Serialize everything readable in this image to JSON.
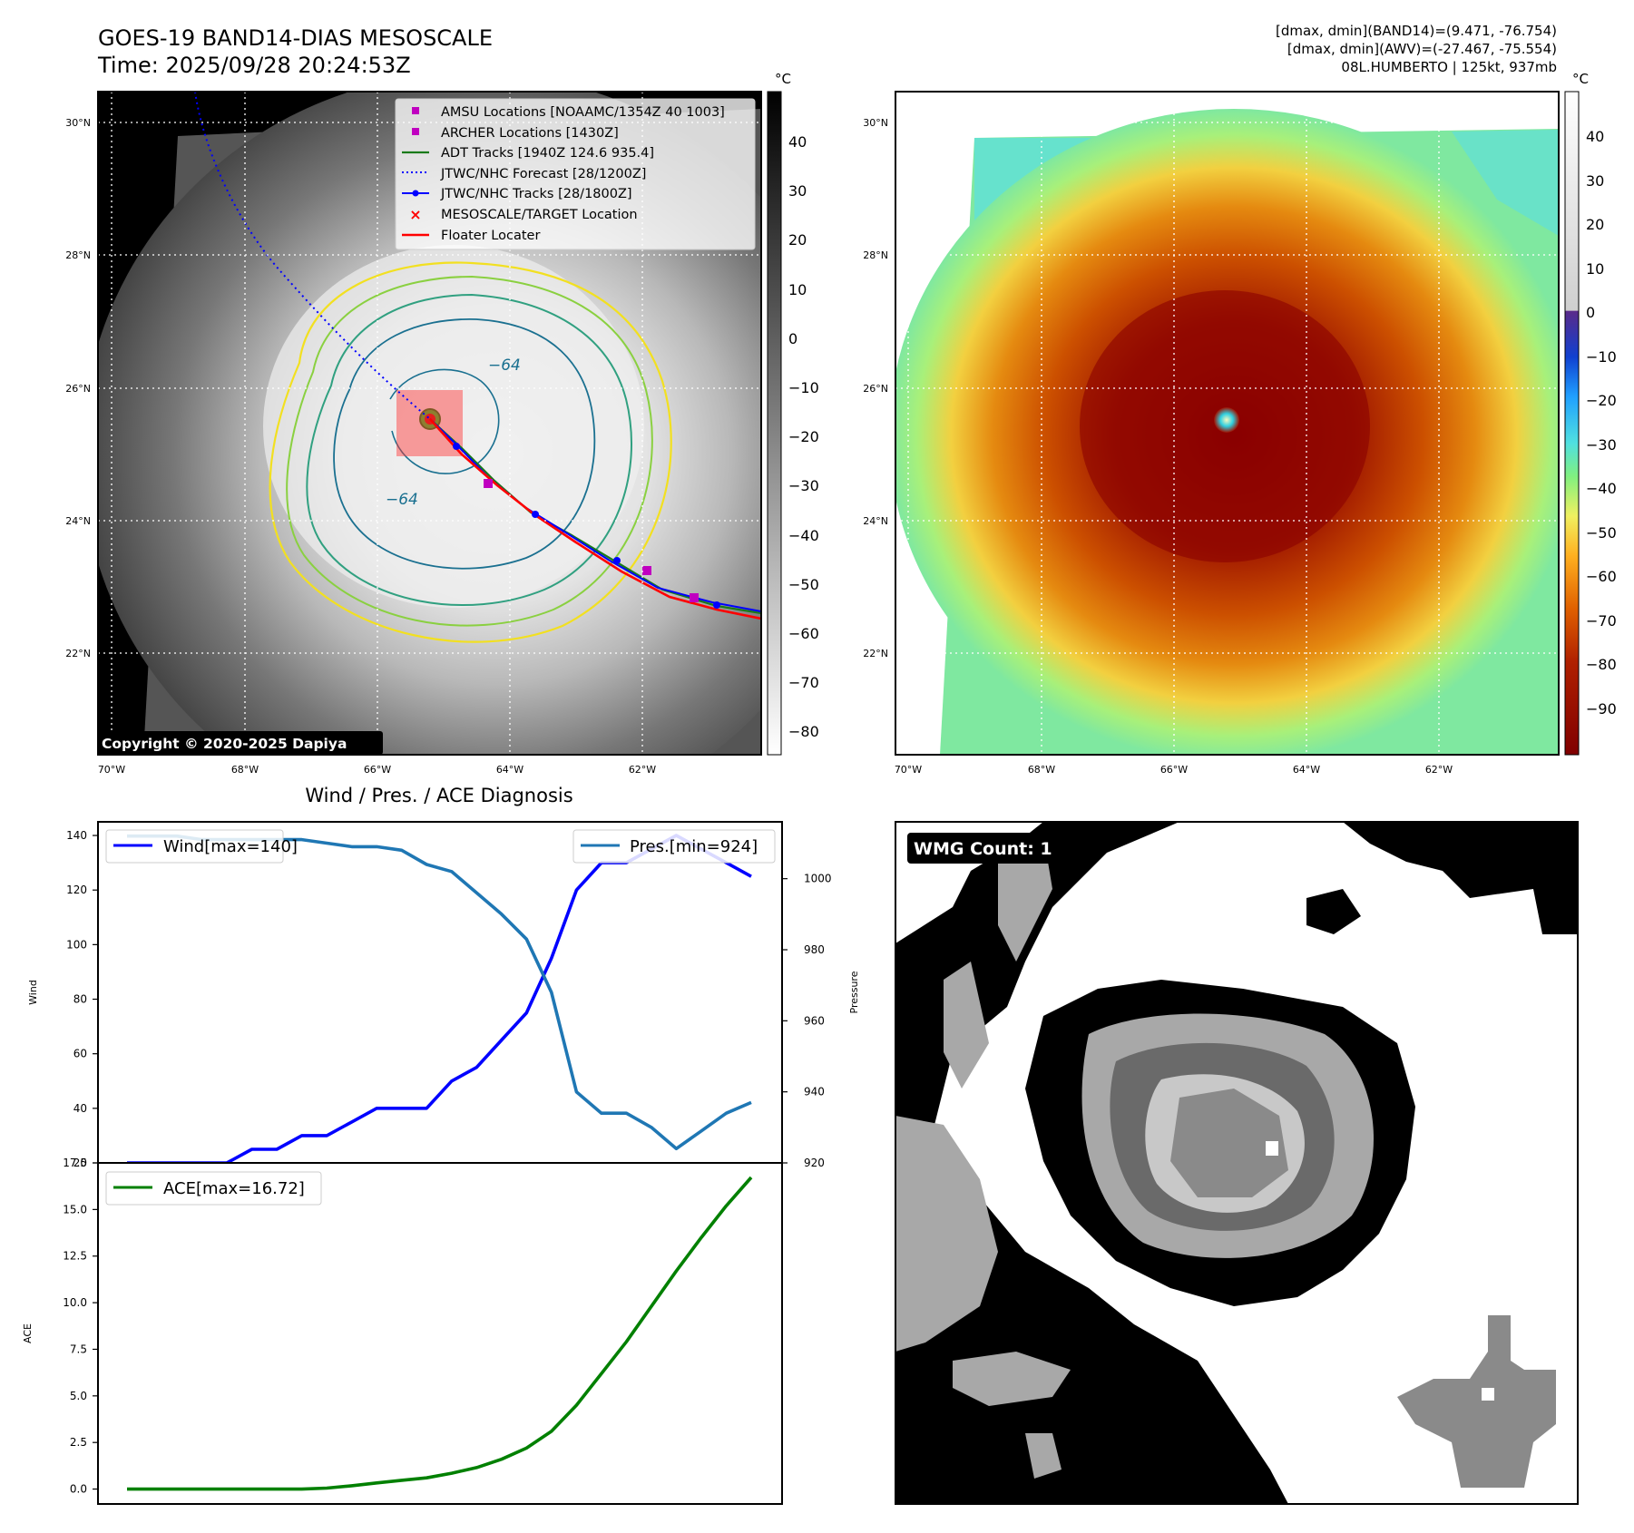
{
  "header": {
    "title_line1": "GOES-19 BAND14-DIAS MESOSCALE",
    "title_line2": "Time: 2025/09/28 20:24:53Z",
    "info_line1": "[dmax, dmin](BAND14)=(9.471, -76.754)",
    "info_line2": "[dmax, dmin](AWV)=(-27.467, -75.554)",
    "info_line3": "08L.HUMBERTO | 125kt, 937mb"
  },
  "ir_panel": {
    "lat_labels": [
      "30°N",
      "28°N",
      "26°N",
      "24°N",
      "22°N"
    ],
    "lon_labels": [
      "70°W",
      "68°W",
      "66°W",
      "64°W",
      "62°W"
    ],
    "copyright": "Copyright © 2020-2025 Dapiya",
    "contour_label_1": "−64",
    "contour_label_2": "−64",
    "colorbar_unit": "°C",
    "colorbar_ticks": [
      "40",
      "30",
      "20",
      "10",
      "0",
      "−10",
      "−20",
      "−30",
      "−40",
      "−50",
      "−60",
      "−70",
      "−80"
    ],
    "legend": [
      {
        "label": "AMSU Locations [NOAAMC/1354Z 40 1003]",
        "marker": "square",
        "color": "#c000c0"
      },
      {
        "label": "ARCHER Locations [1430Z]",
        "marker": "square",
        "color": "#c000c0"
      },
      {
        "label": "ADT Tracks [1940Z 124.6 935.4]",
        "marker": "line",
        "color": "#1a7a1a"
      },
      {
        "label": "JTWC/NHC Forecast [28/1200Z]",
        "marker": "dotted",
        "color": "#0000ff"
      },
      {
        "label": "JTWC/NHC Tracks [28/1800Z]",
        "marker": "line-dot",
        "color": "#0000ff"
      },
      {
        "label": "MESOSCALE/TARGET Location",
        "marker": "x",
        "color": "#ff0000"
      },
      {
        "label": "Floater Locater",
        "marker": "line",
        "color": "#ff0000"
      }
    ]
  },
  "color_panel": {
    "lat_labels": [
      "30°N",
      "28°N",
      "26°N",
      "24°N",
      "22°N"
    ],
    "lon_labels": [
      "70°W",
      "68°W",
      "66°W",
      "64°W",
      "62°W"
    ],
    "colorbar_unit": "°C",
    "colorbar_ticks": [
      "40",
      "30",
      "20",
      "10",
      "0",
      "−10",
      "−20",
      "−30",
      "−40",
      "−50",
      "−60",
      "−70",
      "−80",
      "−90"
    ]
  },
  "diag": {
    "title": "Wind / Pres. / ACE Diagnosis",
    "wind_ylabel": "Wind",
    "pres_ylabel": "Pressure",
    "ace_ylabel": "ACE",
    "wind_legend": "Wind[max=140]",
    "pres_legend": "Pres.[min=924]",
    "ace_legend": "ACE[max=16.72]"
  },
  "wmg": {
    "badge": "WMG Count: 1"
  },
  "chart_data": [
    {
      "type": "line",
      "title": "Wind / Pres. / ACE Diagnosis",
      "x": [
        0,
        1,
        2,
        3,
        4,
        5,
        6,
        7,
        8,
        9,
        10,
        11,
        12,
        13,
        14,
        15,
        16,
        17,
        18,
        19,
        20,
        21,
        22,
        23,
        24,
        25
      ],
      "series": [
        {
          "name": "Wind[max=140]",
          "axis": "left",
          "color": "#0000ff",
          "values": [
            20,
            20,
            20,
            20,
            20,
            25,
            25,
            30,
            30,
            35,
            40,
            40,
            40,
            50,
            55,
            65,
            75,
            95,
            120,
            130,
            130,
            135,
            140,
            135,
            130,
            125
          ]
        },
        {
          "name": "Pres.[min=924]",
          "axis": "right",
          "color": "#1f77b4",
          "values": [
            1012,
            1012,
            1012,
            1011,
            1011,
            1011,
            1011,
            1011,
            1010,
            1009,
            1009,
            1008,
            1004,
            1002,
            996,
            990,
            983,
            968,
            940,
            934,
            934,
            930,
            924,
            929,
            934,
            937
          ]
        }
      ],
      "ylabel": "Wind",
      "ylim": [
        20,
        145
      ],
      "yticks": [
        20,
        40,
        60,
        80,
        100,
        120,
        140
      ],
      "y2label": "Pressure",
      "y2lim": [
        920,
        1016
      ],
      "y2ticks": [
        920,
        940,
        960,
        980,
        1000
      ]
    },
    {
      "type": "line",
      "x": [
        0,
        1,
        2,
        3,
        4,
        5,
        6,
        7,
        8,
        9,
        10,
        11,
        12,
        13,
        14,
        15,
        16,
        17,
        18,
        19,
        20,
        21,
        22,
        23,
        24,
        25
      ],
      "series": [
        {
          "name": "ACE[max=16.72]",
          "color": "#008000",
          "values": [
            0,
            0,
            0,
            0,
            0,
            0,
            0,
            0,
            0.05,
            0.18,
            0.33,
            0.47,
            0.6,
            0.85,
            1.15,
            1.6,
            2.2,
            3.1,
            4.5,
            6.2,
            7.9,
            9.8,
            11.7,
            13.5,
            15.2,
            16.72
          ]
        }
      ],
      "ylabel": "ACE",
      "ylim": [
        -0.8,
        17.5
      ],
      "yticks": [
        0.0,
        2.5,
        5.0,
        7.5,
        10.0,
        12.5,
        15.0,
        17.5
      ]
    }
  ]
}
